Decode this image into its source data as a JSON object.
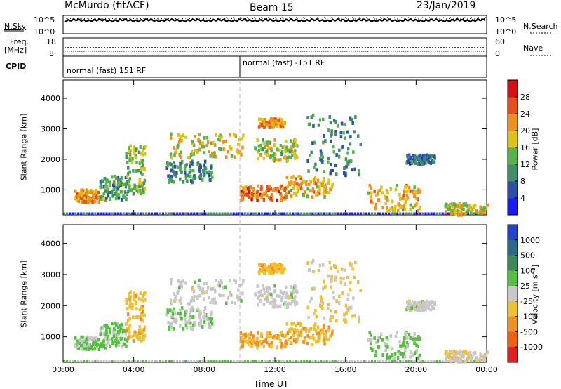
{
  "header": {
    "station": "McMurdo (fitACF)",
    "beam": "Beam 15",
    "date": "23/Jan/2019"
  },
  "params": {
    "nsky_label": "N.Sky",
    "nsky_ticks": [
      "10^5",
      "10^0"
    ],
    "nsearch_label": "N.Search",
    "nsearch_ticks": [
      "10^5",
      "10^0"
    ],
    "freq_label_1": "Freq.",
    "freq_label_2": "[MHz]",
    "freq_ticks": [
      "18",
      "8"
    ],
    "nave_label": "Nave",
    "nave_ticks": [
      "60",
      "0"
    ],
    "cpid_label": "CPID",
    "cpid_segments": [
      {
        "label": "normal (fast) 151 RF",
        "start_hour": 0
      },
      {
        "label": "normal (fast) -151 RF",
        "start_hour": 10
      }
    ]
  },
  "chart_data": [
    {
      "type": "heatmap",
      "name": "power",
      "xlabel": "",
      "ylabel": "Slant Range [km]",
      "x_ticks": [
        "00:00",
        "04:00",
        "08:00",
        "12:00",
        "16:00",
        "20:00",
        "00:00"
      ],
      "y_ticks": [
        "1000",
        "2000",
        "3000",
        "4000"
      ],
      "xlim": [
        0,
        24
      ],
      "ylim": [
        180,
        4600
      ],
      "colorbar": {
        "label": "Power [dB]",
        "ticks": [
          "4",
          "8",
          "12",
          "16",
          "20",
          "24",
          "28"
        ],
        "range": [
          0,
          32
        ],
        "colors": [
          "#1a1aff",
          "#2a50a8",
          "#3f8f6a",
          "#55b34a",
          "#ddc21a",
          "#f0901a",
          "#e8501a",
          "#d81010"
        ]
      },
      "echo_regions": [
        {
          "t": [
            0.6,
            2.0
          ],
          "r": [
            650,
            1050
          ],
          "v": 22
        },
        {
          "t": [
            2.0,
            3.6
          ],
          "r": [
            700,
            1500
          ],
          "v": 12
        },
        {
          "t": [
            3.5,
            4.6
          ],
          "r": [
            900,
            2500
          ],
          "v": 14
        },
        {
          "t": [
            6.0,
            10.2
          ],
          "r": [
            2100,
            2900
          ],
          "v": 18
        },
        {
          "t": [
            5.8,
            8.4
          ],
          "r": [
            1300,
            2000
          ],
          "v": 10
        },
        {
          "t": [
            10.0,
            12.6
          ],
          "r": [
            700,
            1200
          ],
          "v": 24
        },
        {
          "t": [
            10.8,
            13.2
          ],
          "r": [
            2000,
            2700
          ],
          "v": 16
        },
        {
          "t": [
            11.0,
            12.5
          ],
          "r": [
            3100,
            3400
          ],
          "v": 22
        },
        {
          "t": [
            12.6,
            15.2
          ],
          "r": [
            800,
            1500
          ],
          "v": 20
        },
        {
          "t": [
            13.8,
            16.8
          ],
          "r": [
            1500,
            3500
          ],
          "v": 10
        },
        {
          "t": [
            17.2,
            20.2
          ],
          "r": [
            350,
            1200
          ],
          "v": 20
        },
        {
          "t": [
            19.4,
            21.0
          ],
          "r": [
            1900,
            2200
          ],
          "v": 8
        },
        {
          "t": [
            21.6,
            24.0
          ],
          "r": [
            220,
            600
          ],
          "v": 18
        }
      ]
    },
    {
      "type": "heatmap",
      "name": "velocity",
      "xlabel": "Time UT",
      "ylabel": "Slant Range [km]",
      "x_ticks": [
        "00:00",
        "04:00",
        "08:00",
        "12:00",
        "16:00",
        "20:00",
        "00:00"
      ],
      "y_ticks": [
        "1000",
        "2000",
        "3000",
        "4000"
      ],
      "xlim": [
        0,
        24
      ],
      "ylim": [
        180,
        4600
      ],
      "colorbar": {
        "label": "Velocity [m s⁻¹]",
        "ticks": [
          "1000",
          "500",
          "100",
          "25",
          "-25",
          "-100",
          "-500",
          "-1000"
        ],
        "range": [
          -1200,
          1200
        ],
        "colors": [
          "#2244cc",
          "#2a6a8a",
          "#3a8a5a",
          "#55c040",
          "#c8c8c8",
          "#f0c030",
          "#f09020",
          "#f06010",
          "#e02020"
        ]
      },
      "echo_regions": [
        {
          "t": [
            0.6,
            2.0
          ],
          "r": [
            650,
            1050
          ],
          "v": 150
        },
        {
          "t": [
            2.0,
            3.6
          ],
          "r": [
            700,
            1500
          ],
          "v": 200
        },
        {
          "t": [
            3.5,
            4.6
          ],
          "r": [
            900,
            2500
          ],
          "v": -300
        },
        {
          "t": [
            6.0,
            10.2
          ],
          "r": [
            2100,
            2900
          ],
          "v": 0
        },
        {
          "t": [
            5.8,
            8.4
          ],
          "r": [
            1300,
            2000
          ],
          "v": 120
        },
        {
          "t": [
            10.0,
            12.6
          ],
          "r": [
            700,
            1200
          ],
          "v": -400
        },
        {
          "t": [
            10.8,
            13.2
          ],
          "r": [
            2000,
            2700
          ],
          "v": 0
        },
        {
          "t": [
            11.0,
            12.5
          ],
          "r": [
            3100,
            3400
          ],
          "v": -300
        },
        {
          "t": [
            12.6,
            15.2
          ],
          "r": [
            800,
            1500
          ],
          "v": -350
        },
        {
          "t": [
            13.8,
            16.8
          ],
          "r": [
            1500,
            3500
          ],
          "v": -150
        },
        {
          "t": [
            17.2,
            20.2
          ],
          "r": [
            350,
            1200
          ],
          "v": 200
        },
        {
          "t": [
            19.4,
            21.0
          ],
          "r": [
            1900,
            2200
          ],
          "v": 0
        },
        {
          "t": [
            21.6,
            24.0
          ],
          "r": [
            220,
            600
          ],
          "v": -60
        }
      ]
    }
  ]
}
